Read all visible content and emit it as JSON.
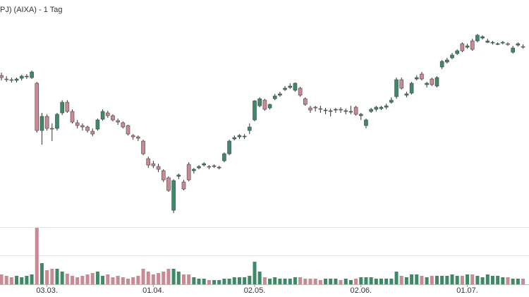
{
  "chart_data": {
    "type": "candlestick",
    "title": "PJ) (AIXA) - 1 Tag",
    "up_color": "#3e8a68",
    "down_color": "#c98a94",
    "ylim": [
      0,
      310
    ],
    "volume_ylim": [
      0,
      80
    ],
    "categories": [
      null,
      null,
      null,
      null,
      null,
      null,
      null,
      null,
      null,
      "03.03.",
      null,
      null,
      null,
      null,
      null,
      null,
      null,
      null,
      null,
      null,
      null,
      null,
      null,
      null,
      null,
      null,
      null,
      null,
      null,
      null,
      "01.04.",
      null,
      null,
      null,
      null,
      null,
      null,
      null,
      null,
      null,
      null,
      null,
      null,
      null,
      null,
      null,
      null,
      null,
      null,
      null,
      "02.05.",
      null,
      null,
      null,
      null,
      null,
      null,
      null,
      null,
      null,
      null,
      null,
      null,
      null,
      null,
      null,
      null,
      null,
      null,
      null,
      null,
      "02.06.",
      null,
      null,
      null,
      null,
      null,
      null,
      null,
      null,
      null,
      null,
      null,
      null,
      null,
      null,
      null,
      null,
      null,
      null,
      null,
      null,
      "01.07.",
      null,
      null,
      null,
      null,
      null,
      null,
      null,
      null,
      null,
      null,
      null
    ],
    "candles": [
      {
        "open": 203,
        "high": 207,
        "low": 196,
        "close": 200
      },
      {
        "open": 198,
        "high": 202,
        "low": 194,
        "close": 197
      },
      {
        "open": 197,
        "high": 200,
        "low": 193,
        "close": 196
      },
      {
        "open": 196,
        "high": 200,
        "low": 193,
        "close": 198
      },
      {
        "open": 199,
        "high": 204,
        "low": 196,
        "close": 202
      },
      {
        "open": 201,
        "high": 205,
        "low": 198,
        "close": 202
      },
      {
        "open": 200,
        "high": 210,
        "low": 198,
        "close": 208
      },
      {
        "open": 192,
        "high": 194,
        "low": 122,
        "close": 125
      },
      {
        "open": 125,
        "high": 150,
        "low": 105,
        "close": 145
      },
      {
        "open": 145,
        "high": 148,
        "low": 125,
        "close": 128
      },
      {
        "open": 128,
        "high": 135,
        "low": 110,
        "close": 127
      },
      {
        "open": 128,
        "high": 150,
        "low": 125,
        "close": 148
      },
      {
        "open": 150,
        "high": 168,
        "low": 147,
        "close": 165
      },
      {
        "open": 165,
        "high": 168,
        "low": 150,
        "close": 152
      },
      {
        "open": 152,
        "high": 155,
        "low": 135,
        "close": 137
      },
      {
        "open": 136,
        "high": 140,
        "low": 128,
        "close": 132
      },
      {
        "open": 132,
        "high": 135,
        "low": 125,
        "close": 130
      },
      {
        "open": 130,
        "high": 132,
        "low": 122,
        "close": 125
      },
      {
        "open": 124,
        "high": 128,
        "low": 117,
        "close": 120
      },
      {
        "open": 127,
        "high": 142,
        "low": 125,
        "close": 140
      },
      {
        "open": 141,
        "high": 155,
        "low": 139,
        "close": 152
      },
      {
        "open": 150,
        "high": 153,
        "low": 143,
        "close": 146
      },
      {
        "open": 146,
        "high": 148,
        "low": 138,
        "close": 140
      },
      {
        "open": 139,
        "high": 142,
        "low": 133,
        "close": 137
      },
      {
        "open": 136,
        "high": 138,
        "low": 128,
        "close": 130
      },
      {
        "open": 132,
        "high": 133,
        "low": 118,
        "close": 120
      },
      {
        "open": 118,
        "high": 120,
        "low": 112,
        "close": 116
      },
      {
        "open": 116,
        "high": 118,
        "low": 110,
        "close": 114
      },
      {
        "open": 110,
        "high": 112,
        "low": 90,
        "close": 92
      },
      {
        "open": 85,
        "high": 88,
        "low": 72,
        "close": 76
      },
      {
        "open": 78,
        "high": 82,
        "low": 72,
        "close": 75
      },
      {
        "open": 74,
        "high": 78,
        "low": 66,
        "close": 70
      },
      {
        "open": 68,
        "high": 70,
        "low": 52,
        "close": 55
      },
      {
        "open": 58,
        "high": 60,
        "low": 38,
        "close": 40
      },
      {
        "open": 12,
        "high": 56,
        "low": 8,
        "close": 54
      },
      {
        "open": 60,
        "high": 64,
        "low": 56,
        "close": 62
      },
      {
        "open": 52,
        "high": 55,
        "low": 40,
        "close": 42
      },
      {
        "open": 77,
        "high": 80,
        "low": 53,
        "close": 55
      },
      {
        "open": 68,
        "high": 72,
        "low": 64,
        "close": 70
      },
      {
        "open": 72,
        "high": 76,
        "low": 70,
        "close": 74
      },
      {
        "open": 76,
        "high": 80,
        "low": 74,
        "close": 78
      },
      {
        "open": 74,
        "high": 76,
        "low": 70,
        "close": 73
      },
      {
        "open": 74,
        "high": 77,
        "low": 72,
        "close": 75
      },
      {
        "open": 72,
        "high": 75,
        "low": 70,
        "close": 73
      },
      {
        "open": 82,
        "high": 94,
        "low": 80,
        "close": 92
      },
      {
        "open": 92,
        "high": 112,
        "low": 90,
        "close": 110
      },
      {
        "open": 113,
        "high": 118,
        "low": 111,
        "close": 115
      },
      {
        "open": 116,
        "high": 120,
        "low": 113,
        "close": 118
      },
      {
        "open": 116,
        "high": 120,
        "low": 113,
        "close": 117
      },
      {
        "open": 125,
        "high": 135,
        "low": 120,
        "close": 130
      },
      {
        "open": 140,
        "high": 168,
        "low": 138,
        "close": 167
      },
      {
        "open": 160,
        "high": 172,
        "low": 158,
        "close": 170
      },
      {
        "open": 168,
        "high": 170,
        "low": 153,
        "close": 155
      },
      {
        "open": 157,
        "high": 163,
        "low": 155,
        "close": 162
      },
      {
        "open": 170,
        "high": 177,
        "low": 168,
        "close": 174
      },
      {
        "open": 175,
        "high": 180,
        "low": 173,
        "close": 177
      },
      {
        "open": 183,
        "high": 188,
        "low": 181,
        "close": 185
      },
      {
        "open": 186,
        "high": 192,
        "low": 184,
        "close": 188
      },
      {
        "open": 182,
        "high": 193,
        "low": 180,
        "close": 192
      },
      {
        "open": 185,
        "high": 187,
        "low": 173,
        "close": 175
      },
      {
        "open": 170,
        "high": 172,
        "low": 160,
        "close": 162
      },
      {
        "open": 157,
        "high": 160,
        "low": 150,
        "close": 154
      },
      {
        "open": 158,
        "high": 160,
        "low": 152,
        "close": 157
      },
      {
        "open": 156,
        "high": 160,
        "low": 150,
        "close": 155
      },
      {
        "open": 153,
        "high": 157,
        "low": 148,
        "close": 154
      },
      {
        "open": 152,
        "high": 156,
        "low": 145,
        "close": 153
      },
      {
        "open": 154,
        "high": 157,
        "low": 150,
        "close": 155
      },
      {
        "open": 155,
        "high": 158,
        "low": 150,
        "close": 154
      },
      {
        "open": 152,
        "high": 156,
        "low": 148,
        "close": 153
      },
      {
        "open": 152,
        "high": 160,
        "low": 148,
        "close": 152
      },
      {
        "open": 158,
        "high": 160,
        "low": 146,
        "close": 148
      },
      {
        "open": 146,
        "high": 150,
        "low": 140,
        "close": 148
      },
      {
        "open": 132,
        "high": 142,
        "low": 128,
        "close": 140
      },
      {
        "open": 152,
        "high": 157,
        "low": 150,
        "close": 155
      },
      {
        "open": 155,
        "high": 160,
        "low": 152,
        "close": 158
      },
      {
        "open": 156,
        "high": 160,
        "low": 154,
        "close": 158
      },
      {
        "open": 158,
        "high": 163,
        "low": 155,
        "close": 160
      },
      {
        "open": 165,
        "high": 172,
        "low": 163,
        "close": 168
      },
      {
        "open": 173,
        "high": 200,
        "low": 170,
        "close": 197
      },
      {
        "open": 197,
        "high": 200,
        "low": 183,
        "close": 185
      },
      {
        "open": 175,
        "high": 180,
        "low": 172,
        "close": 177
      },
      {
        "open": 178,
        "high": 194,
        "low": 176,
        "close": 192
      },
      {
        "open": 198,
        "high": 203,
        "low": 196,
        "close": 200
      },
      {
        "open": 205,
        "high": 208,
        "low": 196,
        "close": 198
      },
      {
        "open": 190,
        "high": 194,
        "low": 186,
        "close": 192
      },
      {
        "open": 198,
        "high": 200,
        "low": 188,
        "close": 190
      },
      {
        "open": 188,
        "high": 202,
        "low": 186,
        "close": 200
      },
      {
        "open": 215,
        "high": 225,
        "low": 212,
        "close": 223
      },
      {
        "open": 222,
        "high": 228,
        "low": 220,
        "close": 225
      },
      {
        "open": 228,
        "high": 235,
        "low": 226,
        "close": 232
      },
      {
        "open": 234,
        "high": 240,
        "low": 232,
        "close": 238
      },
      {
        "open": 248,
        "high": 250,
        "low": 236,
        "close": 238
      },
      {
        "open": 243,
        "high": 248,
        "low": 241,
        "close": 245
      },
      {
        "open": 252,
        "high": 255,
        "low": 238,
        "close": 240
      },
      {
        "open": 252,
        "high": 262,
        "low": 250,
        "close": 260
      },
      {
        "open": 256,
        "high": 260,
        "low": 254,
        "close": 258
      },
      {
        "open": 250,
        "high": 255,
        "low": 249,
        "close": 252
      },
      {
        "open": 249,
        "high": 252,
        "low": 247,
        "close": 250
      },
      {
        "open": 247,
        "high": 250,
        "low": 246,
        "close": 248
      },
      {
        "open": 249,
        "high": 252,
        "low": 247,
        "close": 250
      },
      {
        "open": 248,
        "high": 250,
        "low": 245,
        "close": 247
      },
      {
        "open": 236,
        "high": 245,
        "low": 234,
        "close": 242
      },
      {
        "open": 246,
        "high": 250,
        "low": 244,
        "close": 248
      },
      {
        "open": 244,
        "high": 247,
        "low": 241,
        "close": 243
      }
    ],
    "volume": [
      14,
      12,
      10,
      12,
      10,
      12,
      14,
      80,
      30,
      20,
      22,
      22,
      18,
      15,
      12,
      10,
      12,
      14,
      16,
      18,
      12,
      14,
      10,
      12,
      10,
      8,
      10,
      12,
      22,
      18,
      14,
      16,
      18,
      22,
      22,
      18,
      14,
      14,
      10,
      8,
      8,
      6,
      6,
      6,
      8,
      8,
      10,
      10,
      10,
      12,
      32,
      18,
      10,
      8,
      10,
      8,
      8,
      8,
      10,
      10,
      8,
      8,
      8,
      6,
      8,
      8,
      8,
      6,
      8,
      6,
      8,
      10,
      10,
      10,
      8,
      8,
      8,
      8,
      18,
      12,
      10,
      14,
      14,
      12,
      10,
      12,
      12,
      12,
      12,
      14,
      12,
      12,
      14,
      14,
      12,
      10,
      14,
      12,
      12,
      10,
      10,
      8,
      8,
      8
    ]
  }
}
